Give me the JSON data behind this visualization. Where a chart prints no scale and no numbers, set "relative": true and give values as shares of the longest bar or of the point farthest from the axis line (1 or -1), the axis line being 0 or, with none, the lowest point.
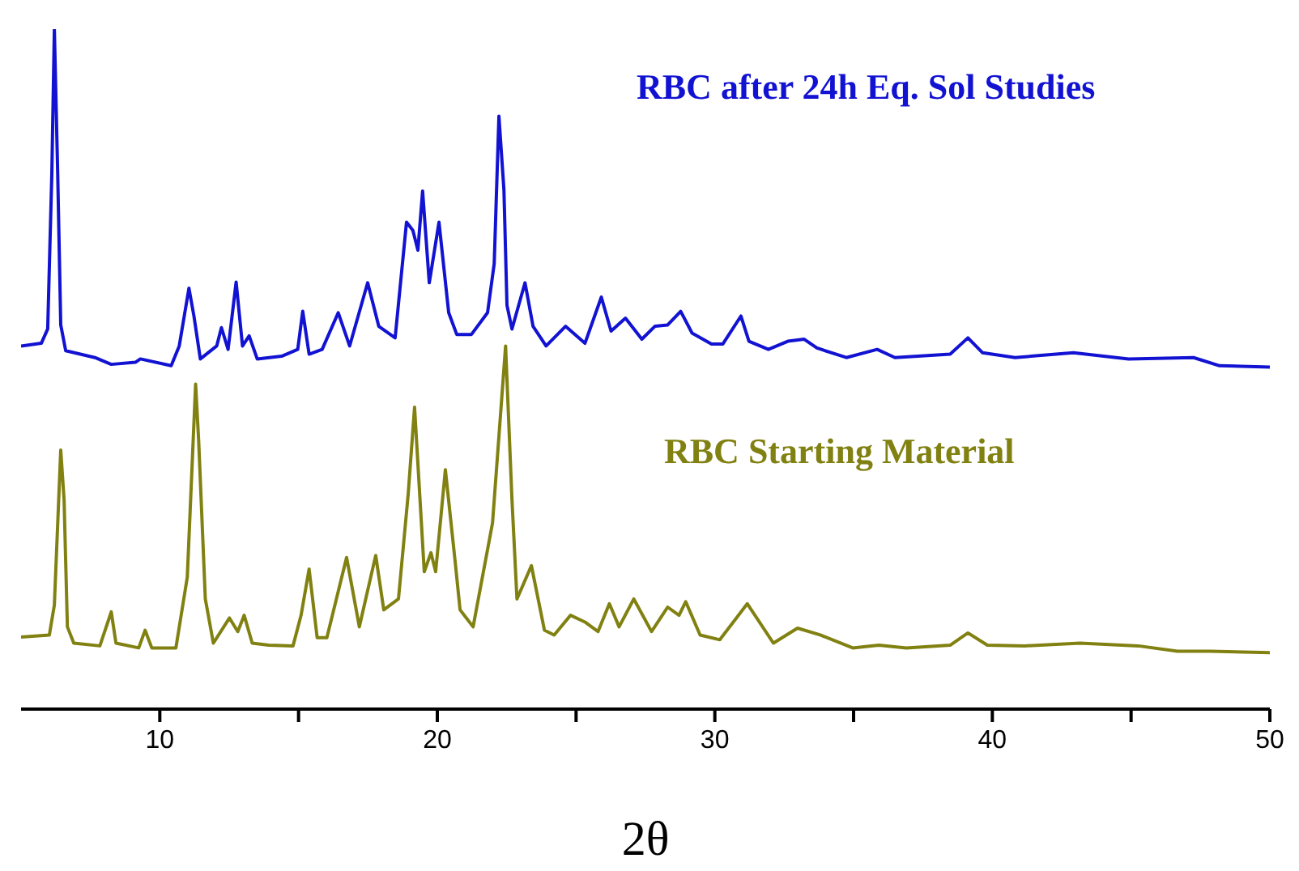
{
  "chart_data": {
    "type": "line",
    "relative": true,
    "xlabel": "2θ",
    "xlim": [
      5,
      50
    ],
    "xticks": [
      10,
      {
        "value": 15,
        "label": null
      },
      20,
      {
        "value": 25,
        "label": null
      },
      30,
      {
        "value": 35,
        "label": null
      },
      40,
      {
        "value": 45,
        "label": null
      },
      50
    ],
    "grid": false,
    "legend": false,
    "marker": "none",
    "line_style": "solid",
    "series": [
      {
        "name": "RBC after 24h Eq. Sol Studies",
        "color": "#1212d2",
        "x": [
          5.0,
          5.73,
          5.96,
          6.11,
          6.2,
          6.32,
          6.43,
          6.61,
          7.66,
          8.25,
          9.12,
          9.3,
          10.41,
          10.7,
          11.05,
          11.23,
          11.46,
          12.05,
          12.22,
          12.46,
          12.75,
          12.98,
          13.22,
          13.51,
          14.39,
          14.97,
          15.15,
          15.38,
          15.85,
          16.43,
          16.84,
          17.49,
          17.89,
          18.48,
          18.89,
          19.12,
          19.3,
          19.47,
          19.71,
          20.06,
          20.41,
          20.7,
          21.23,
          21.81,
          22.05,
          22.22,
          22.4,
          22.51,
          22.69,
          23.16,
          23.45,
          23.92,
          24.62,
          25.32,
          25.91,
          26.26,
          26.78,
          27.37,
          27.84,
          28.3,
          28.77,
          29.18,
          29.88,
          30.29,
          30.94,
          31.23,
          31.93,
          32.63,
          33.22,
          33.68,
          34.74,
          35.85,
          36.49,
          38.48,
          39.12,
          39.65,
          40.82,
          42.92,
          44.91,
          47.25,
          48.19,
          50
        ],
        "values": [
          0.534,
          0.538,
          0.559,
          0.789,
          1.0,
          0.789,
          0.565,
          0.527,
          0.517,
          0.507,
          0.51,
          0.515,
          0.505,
          0.534,
          0.619,
          0.578,
          0.515,
          0.534,
          0.561,
          0.529,
          0.628,
          0.534,
          0.549,
          0.515,
          0.519,
          0.529,
          0.585,
          0.522,
          0.529,
          0.583,
          0.534,
          0.627,
          0.563,
          0.546,
          0.716,
          0.704,
          0.675,
          0.762,
          0.627,
          0.716,
          0.583,
          0.551,
          0.551,
          0.583,
          0.655,
          0.872,
          0.764,
          0.594,
          0.559,
          0.627,
          0.563,
          0.534,
          0.563,
          0.538,
          0.606,
          0.556,
          0.575,
          0.544,
          0.563,
          0.565,
          0.585,
          0.553,
          0.537,
          0.537,
          0.578,
          0.541,
          0.529,
          0.541,
          0.544,
          0.531,
          0.517,
          0.529,
          0.517,
          0.522,
          0.546,
          0.524,
          0.517,
          0.524,
          0.515,
          0.517,
          0.505,
          0.503
        ]
      },
      {
        "name": "RBC Starting Material",
        "color": "#818112",
        "x": [
          5.0,
          6.02,
          6.2,
          6.43,
          6.55,
          6.67,
          6.9,
          7.84,
          8.25,
          8.42,
          9.24,
          9.47,
          9.71,
          10.58,
          10.99,
          11.29,
          11.4,
          11.64,
          11.93,
          12.51,
          12.81,
          13.04,
          13.33,
          13.92,
          14.8,
          15.09,
          15.38,
          15.67,
          16.02,
          16.73,
          17.19,
          17.78,
          18.07,
          18.6,
          18.95,
          19.18,
          19.53,
          19.77,
          19.94,
          20.29,
          20.64,
          20.82,
          21.29,
          21.99,
          22.46,
          22.69,
          22.87,
          23.39,
          23.86,
          24.21,
          24.8,
          25.32,
          25.79,
          26.2,
          26.55,
          27.08,
          27.72,
          28.3,
          28.71,
          28.95,
          29.47,
          30.18,
          31.17,
          32.11,
          32.98,
          33.8,
          34.97,
          35.91,
          36.9,
          38.48,
          39.12,
          39.82,
          41.17,
          43.16,
          45.26,
          46.67,
          47.84,
          50
        ],
        "values": [
          0.106,
          0.109,
          0.153,
          0.381,
          0.308,
          0.121,
          0.097,
          0.093,
          0.143,
          0.097,
          0.09,
          0.116,
          0.09,
          0.09,
          0.194,
          0.478,
          0.395,
          0.162,
          0.097,
          0.134,
          0.114,
          0.138,
          0.097,
          0.094,
          0.093,
          0.138,
          0.206,
          0.105,
          0.105,
          0.223,
          0.121,
          0.226,
          0.146,
          0.162,
          0.316,
          0.444,
          0.202,
          0.23,
          0.202,
          0.352,
          0.218,
          0.146,
          0.121,
          0.274,
          0.534,
          0.308,
          0.162,
          0.211,
          0.116,
          0.109,
          0.138,
          0.128,
          0.114,
          0.155,
          0.121,
          0.162,
          0.114,
          0.15,
          0.138,
          0.158,
          0.109,
          0.102,
          0.155,
          0.097,
          0.119,
          0.109,
          0.09,
          0.094,
          0.09,
          0.094,
          0.112,
          0.094,
          0.093,
          0.097,
          0.093,
          0.085,
          0.085,
          0.083
        ]
      }
    ]
  }
}
